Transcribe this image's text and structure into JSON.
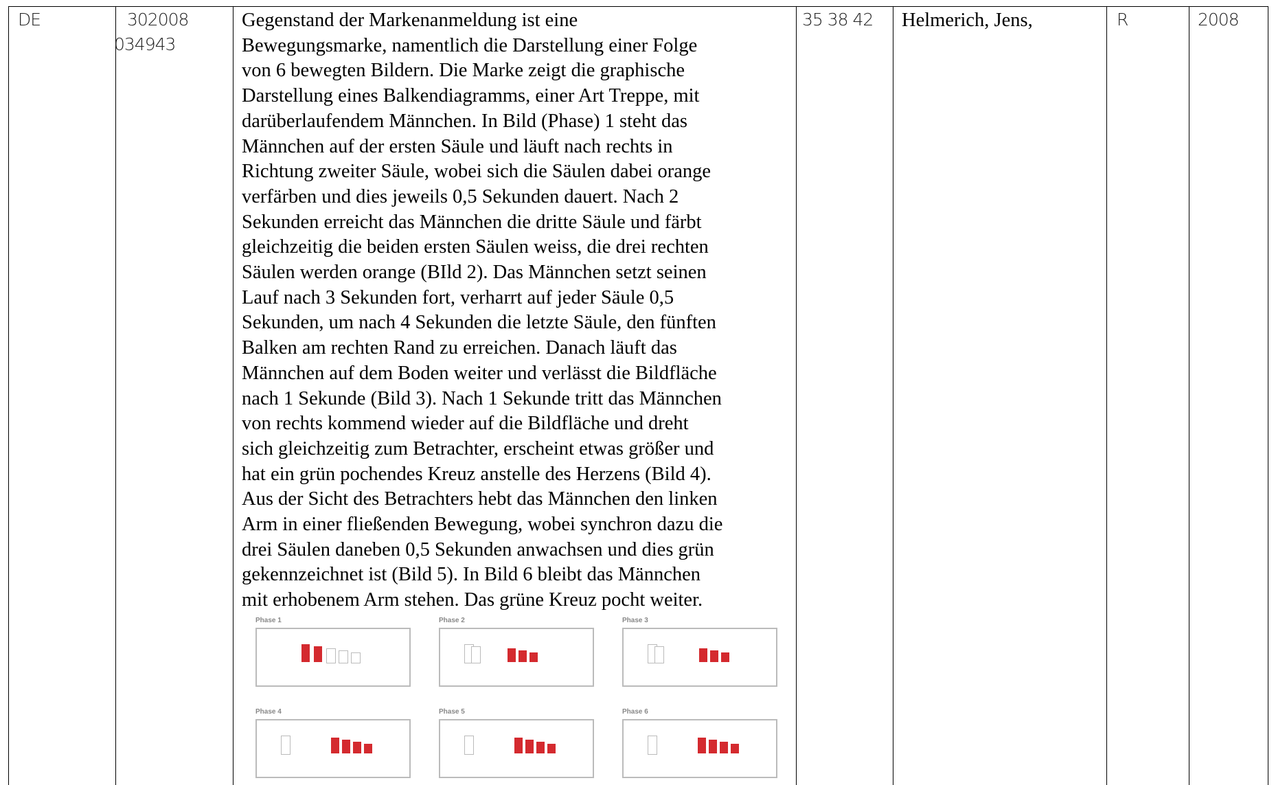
{
  "row": {
    "country": "DE",
    "number_lines": [
      "302008",
      "034943"
    ],
    "description_lines": [
      "Gegenstand der Markenanmeldung ist eine",
      "Bewegungsmarke, namentlich die Darstellung einer Folge",
      "von 6 bewegten Bildern. Die Marke zeigt die graphische",
      "Darstellung eines Balkendiagramms, einer Art Treppe, mit",
      "darüberlaufendem Männchen. In Bild (Phase) 1 steht das",
      "Männchen auf der ersten Säule und läuft nach rechts in",
      "Richtung zweiter Säule, wobei sich die Säulen dabei orange",
      "verfärben und dies jeweils 0,5 Sekunden dauert. Nach 2",
      "Sekunden erreicht das Männchen die dritte Säule und färbt",
      "gleichzeitig die beiden ersten Säulen weiss, die drei rechten",
      "Säulen werden orange (BIld 2). Das Männchen setzt seinen",
      "Lauf nach 3 Sekunden fort, verharrt auf jeder Säule 0,5",
      "Sekunden, um nach 4 Sekunden die letzte Säule, den fünften",
      "Balken am rechten Rand zu erreichen. Danach läuft das",
      "Männchen auf dem Boden weiter und verlässt die Bildfläche",
      "nach 1 Sekunde (Bild 3). Nach 1 Sekunde tritt das Männchen",
      "von rechts kommend wieder auf die Bildfläche und dreht",
      "sich gleichzeitig zum Betrachter, erscheint etwas größer und",
      "hat ein grün pochendes Kreuz anstelle des Herzens (Bild 4).",
      "Aus der Sicht des Betrachters hebt das Männchen den linken",
      "Arm in einer fließenden Bewegung, wobei synchron dazu die",
      "drei Säulen daneben 0,5 Sekunden anwachsen und dies grün",
      "gekennzeichnet ist (Bild 5). In Bild 6 bleibt das Männchen",
      "mit erhobenem Arm stehen. Das grüne Kreuz pocht weiter."
    ],
    "phases": [
      "Phase 1",
      "Phase 2",
      "Phase 3",
      "Phase 4",
      "Phase 5",
      "Phase 6"
    ],
    "classes": "35 38 42",
    "owner": "Helmerich, Jens,",
    "status": "R",
    "year": "2008"
  }
}
